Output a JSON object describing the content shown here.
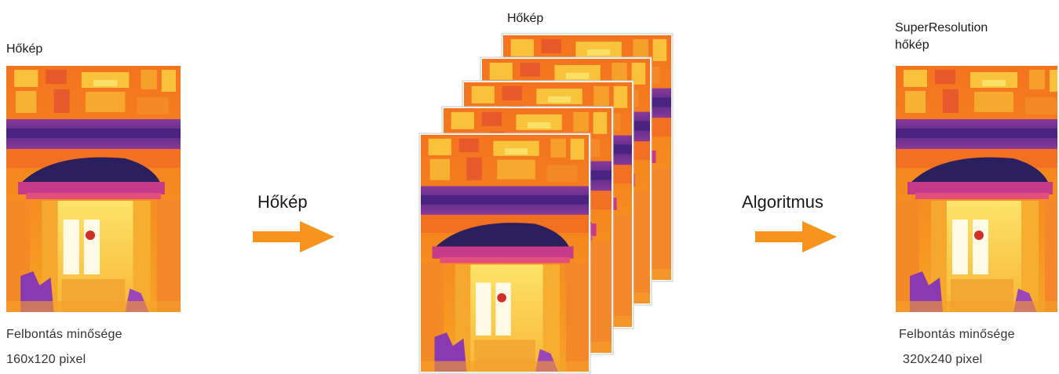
{
  "left": {
    "title": "Hőkép",
    "spec_line1": "Felbontás minősége",
    "spec_line2": "160x120 pixel"
  },
  "arrow1": {
    "label": "Hőkép",
    "color": "#f7941d"
  },
  "stack": {
    "title": "Hőkép",
    "frame_count": 5
  },
  "arrow2": {
    "label": "Algoritmus",
    "color": "#f7941d"
  },
  "right": {
    "title_line1": "SuperResolution",
    "title_line2": "hőkép",
    "spec_line1": "Felbontás minősége",
    "spec_line2": "320x240 pixel"
  },
  "palette": {
    "purple_dark": "#3b1d6e",
    "purple": "#6b2d8f",
    "magenta": "#d1307a",
    "orange": "#f26a21",
    "orange_light": "#f7941d",
    "yellow": "#fdd835",
    "white_hot": "#fffbe6"
  }
}
